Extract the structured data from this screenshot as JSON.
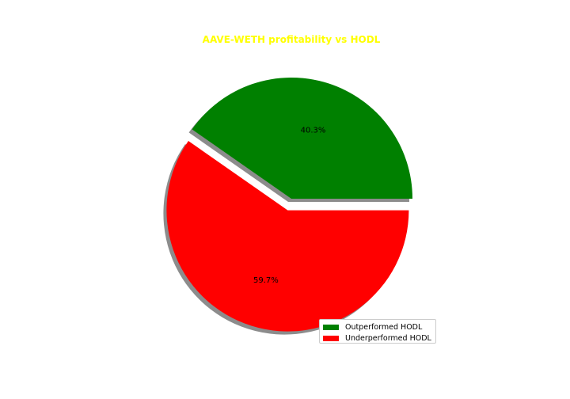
{
  "chart_data": {
    "type": "pie",
    "title": "AAVE-WETH profitability vs HODL",
    "title_color": "#ffff00",
    "slices": [
      {
        "label": "Outperformed HODL",
        "value": 40.3,
        "pct_label": "40.3%",
        "color": "#008000",
        "exploded": false
      },
      {
        "label": "Underperformed HODL",
        "value": 59.7,
        "pct_label": "59.7%",
        "color": "#ff0000",
        "exploded": true
      }
    ],
    "shadow": true,
    "legend_placement": "lower-right"
  }
}
